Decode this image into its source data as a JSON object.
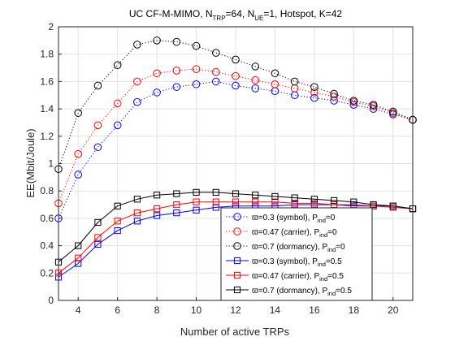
{
  "chart_data": {
    "type": "line",
    "title": "UC CF-M-MIMO, N_TRP=64, N_UE=1, Hotspot, K=42",
    "title_parts": {
      "prefix": "UC CF-M-MIMO, N",
      "trp_sub": "TRP",
      "mid": "=64, N",
      "ue_sub": "UE",
      "suffix": "=1, Hotspot, K=42"
    },
    "xlabel": "Number of active TRPs",
    "ylabel": "EE(Mbit/Joule)",
    "xlim": [
      3,
      21
    ],
    "ylim": [
      0,
      2
    ],
    "xticks": [
      4,
      6,
      8,
      10,
      12,
      14,
      16,
      18,
      20
    ],
    "yticks": [
      0,
      0.2,
      0.4,
      0.6,
      0.8,
      1,
      1.2,
      1.4,
      1.6,
      1.8,
      2
    ],
    "ytick_labels": [
      "0",
      "0.2",
      "0.4",
      "0.6",
      "0.8",
      "1",
      "1.2",
      "1.4",
      "1.6",
      "1.8",
      "2"
    ],
    "grid": true,
    "legend_position": "lower-right",
    "x": [
      3,
      4,
      5,
      6,
      7,
      8,
      9,
      10,
      11,
      12,
      13,
      14,
      15,
      16,
      17,
      18,
      19,
      20,
      21
    ],
    "series": [
      {
        "name": "ϖ=0.3 (symbol), P_ind=0",
        "legend": {
          "main": "ϖ=0.3 (symbol), P",
          "sub": "ind",
          "tail": "=0"
        },
        "color": "#0000ff",
        "line": "dotted",
        "marker": "circle",
        "values": [
          0.6,
          0.92,
          1.12,
          1.28,
          1.45,
          1.52,
          1.56,
          1.58,
          1.6,
          1.57,
          1.55,
          1.53,
          1.5,
          1.48,
          1.46,
          1.43,
          1.4,
          1.36,
          1.32
        ]
      },
      {
        "name": "ϖ=0.47 (carrier), P_ind=0",
        "legend": {
          "main": "ϖ=0.47 (carrier), P",
          "sub": "ind",
          "tail": "=0"
        },
        "color": "#ff0000",
        "line": "dotted",
        "marker": "circle",
        "values": [
          0.71,
          1.07,
          1.28,
          1.44,
          1.6,
          1.66,
          1.68,
          1.69,
          1.67,
          1.64,
          1.61,
          1.58,
          1.55,
          1.52,
          1.49,
          1.45,
          1.42,
          1.37,
          1.32
        ]
      },
      {
        "name": "ϖ=0.7 (dormancy), P_ind=0",
        "legend": {
          "main": "ϖ=0.7 (dormancy), P",
          "sub": "ind",
          "tail": "=0"
        },
        "color": "#000000",
        "line": "dotted",
        "marker": "circle",
        "values": [
          0.96,
          1.37,
          1.57,
          1.72,
          1.87,
          1.9,
          1.89,
          1.86,
          1.81,
          1.76,
          1.71,
          1.66,
          1.6,
          1.56,
          1.51,
          1.46,
          1.43,
          1.38,
          1.32
        ]
      },
      {
        "name": "ϖ=0.3 (symbol), P_ind=0.5",
        "legend": {
          "main": "ϖ=0.3 (symbol), P",
          "sub": "ind",
          "tail": "=0.5"
        },
        "color": "#0000ff",
        "line": "solid",
        "marker": "square",
        "values": [
          0.17,
          0.27,
          0.41,
          0.51,
          0.58,
          0.62,
          0.64,
          0.66,
          0.68,
          0.69,
          0.69,
          0.69,
          0.7,
          0.7,
          0.7,
          0.69,
          0.69,
          0.69,
          0.67
        ]
      },
      {
        "name": "ϖ=0.47 (carrier), P_ind=0.5",
        "legend": {
          "main": "ϖ=0.47 (carrier), P",
          "sub": "ind",
          "tail": "=0.5"
        },
        "color": "#ff0000",
        "line": "solid",
        "marker": "square",
        "values": [
          0.2,
          0.31,
          0.46,
          0.58,
          0.64,
          0.67,
          0.7,
          0.72,
          0.72,
          0.72,
          0.72,
          0.72,
          0.71,
          0.71,
          0.7,
          0.7,
          0.69,
          0.68,
          0.67
        ]
      },
      {
        "name": "ϖ=0.7 (dormancy), P_ind=0.5",
        "legend": {
          "main": "ϖ=0.7 (dormancy), P",
          "sub": "ind",
          "tail": "=0.5"
        },
        "color": "#000000",
        "line": "solid",
        "marker": "square",
        "values": [
          0.28,
          0.4,
          0.57,
          0.69,
          0.74,
          0.77,
          0.78,
          0.79,
          0.79,
          0.78,
          0.77,
          0.76,
          0.75,
          0.74,
          0.73,
          0.72,
          0.7,
          0.69,
          0.67
        ]
      }
    ]
  }
}
